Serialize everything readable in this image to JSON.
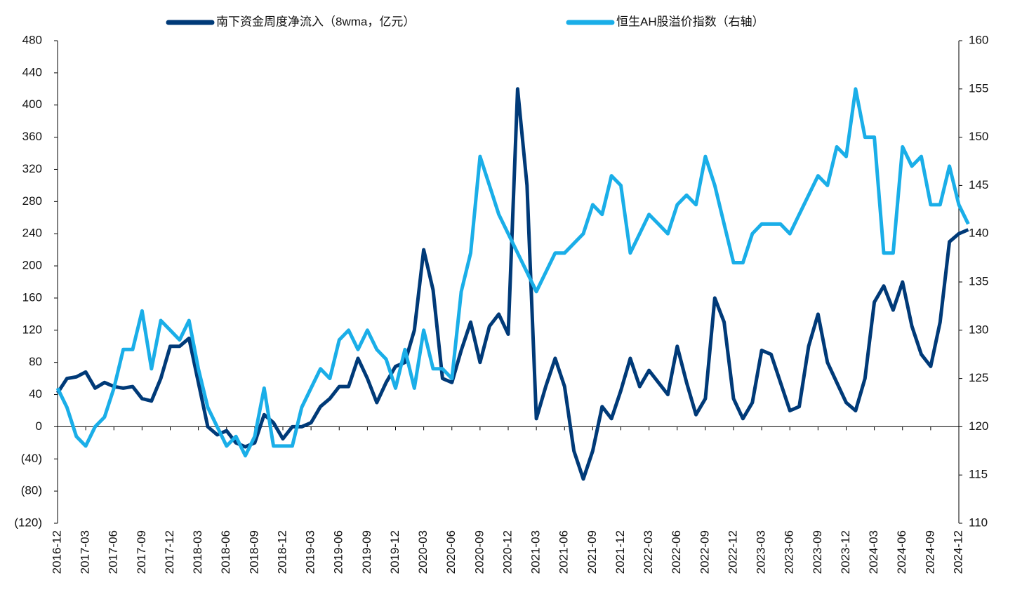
{
  "chart_data": {
    "type": "line",
    "categories": [
      "2016-12",
      null,
      null,
      "2017-03",
      null,
      null,
      "2017-06",
      null,
      null,
      "2017-09",
      null,
      null,
      "2017-12",
      null,
      null,
      "2018-03",
      null,
      null,
      "2018-06",
      null,
      null,
      "2018-09",
      null,
      null,
      "2018-12",
      null,
      null,
      "2019-03",
      null,
      null,
      "2019-06",
      null,
      null,
      "2019-09",
      null,
      null,
      "2019-12",
      null,
      null,
      "2020-03",
      null,
      null,
      "2020-06",
      null,
      null,
      "2020-09",
      null,
      null,
      "2020-12",
      null,
      null,
      "2021-03",
      null,
      null,
      "2021-06",
      null,
      null,
      "2021-09",
      null,
      null,
      "2021-12",
      null,
      null,
      "2022-03",
      null,
      null,
      "2022-06",
      null,
      null,
      "2022-09",
      null,
      null,
      "2022-12",
      null,
      null,
      "2023-03",
      null,
      null,
      "2023-06",
      null,
      null,
      "2023-09",
      null,
      null,
      "2023-12",
      null,
      null,
      "2024-03",
      null,
      null,
      "2024-06",
      null,
      null,
      "2024-09",
      null,
      null,
      "2024-12",
      null
    ],
    "series": [
      {
        "name": "南下资金周度净流入（8wma，亿元）",
        "color": "#003a78",
        "axis": "y",
        "values": [
          42,
          60,
          62,
          68,
          48,
          55,
          50,
          48,
          50,
          35,
          32,
          60,
          100,
          100,
          110,
          55,
          0,
          -10,
          -5,
          -20,
          -25,
          -20,
          15,
          5,
          -15,
          0,
          0,
          5,
          25,
          35,
          50,
          50,
          85,
          60,
          30,
          55,
          75,
          80,
          120,
          220,
          170,
          60,
          55,
          95,
          130,
          80,
          125,
          140,
          115,
          420,
          300,
          10,
          50,
          85,
          50,
          -30,
          -65,
          -30,
          25,
          10,
          45,
          85,
          50,
          70,
          55,
          40,
          100,
          55,
          15,
          35,
          160,
          130,
          35,
          10,
          30,
          95,
          90,
          55,
          20,
          25,
          100,
          140,
          80,
          55,
          30,
          20,
          60,
          155,
          175,
          145,
          180,
          125,
          90,
          75,
          130,
          230,
          240,
          245
        ]
      },
      {
        "name": "恒生AH股溢价指数（右轴）",
        "color": "#1aaee8",
        "axis": "y2",
        "values": [
          124,
          122,
          119,
          118,
          120,
          121,
          124,
          128,
          128,
          132,
          126,
          131,
          130,
          129,
          131,
          126,
          122,
          120,
          118,
          119,
          117,
          119,
          124,
          118,
          118,
          118,
          122,
          124,
          126,
          125,
          129,
          130,
          128,
          130,
          128,
          127,
          124,
          128,
          124,
          130,
          126,
          126,
          125,
          134,
          138,
          148,
          145,
          142,
          140,
          138,
          136,
          134,
          136,
          138,
          138,
          139,
          140,
          143,
          142,
          146,
          145,
          138,
          140,
          142,
          141,
          140,
          143,
          144,
          143,
          148,
          145,
          141,
          137,
          137,
          140,
          141,
          141,
          141,
          140,
          142,
          144,
          146,
          145,
          149,
          148,
          155,
          150,
          150,
          138,
          138,
          149,
          147,
          148,
          143,
          143,
          147,
          143,
          141
        ]
      }
    ],
    "ylim": [
      -120,
      480
    ],
    "yticks": [
      {
        "value": -120,
        "label": "(120)"
      },
      {
        "value": -80,
        "label": "(80)"
      },
      {
        "value": -40,
        "label": "(40)"
      },
      0,
      40,
      80,
      120,
      160,
      200,
      240,
      280,
      320,
      360,
      400,
      440,
      480
    ],
    "y2lim": [
      110,
      160
    ],
    "y2ticks": [
      110,
      115,
      120,
      125,
      130,
      135,
      140,
      145,
      150,
      155,
      160
    ]
  }
}
